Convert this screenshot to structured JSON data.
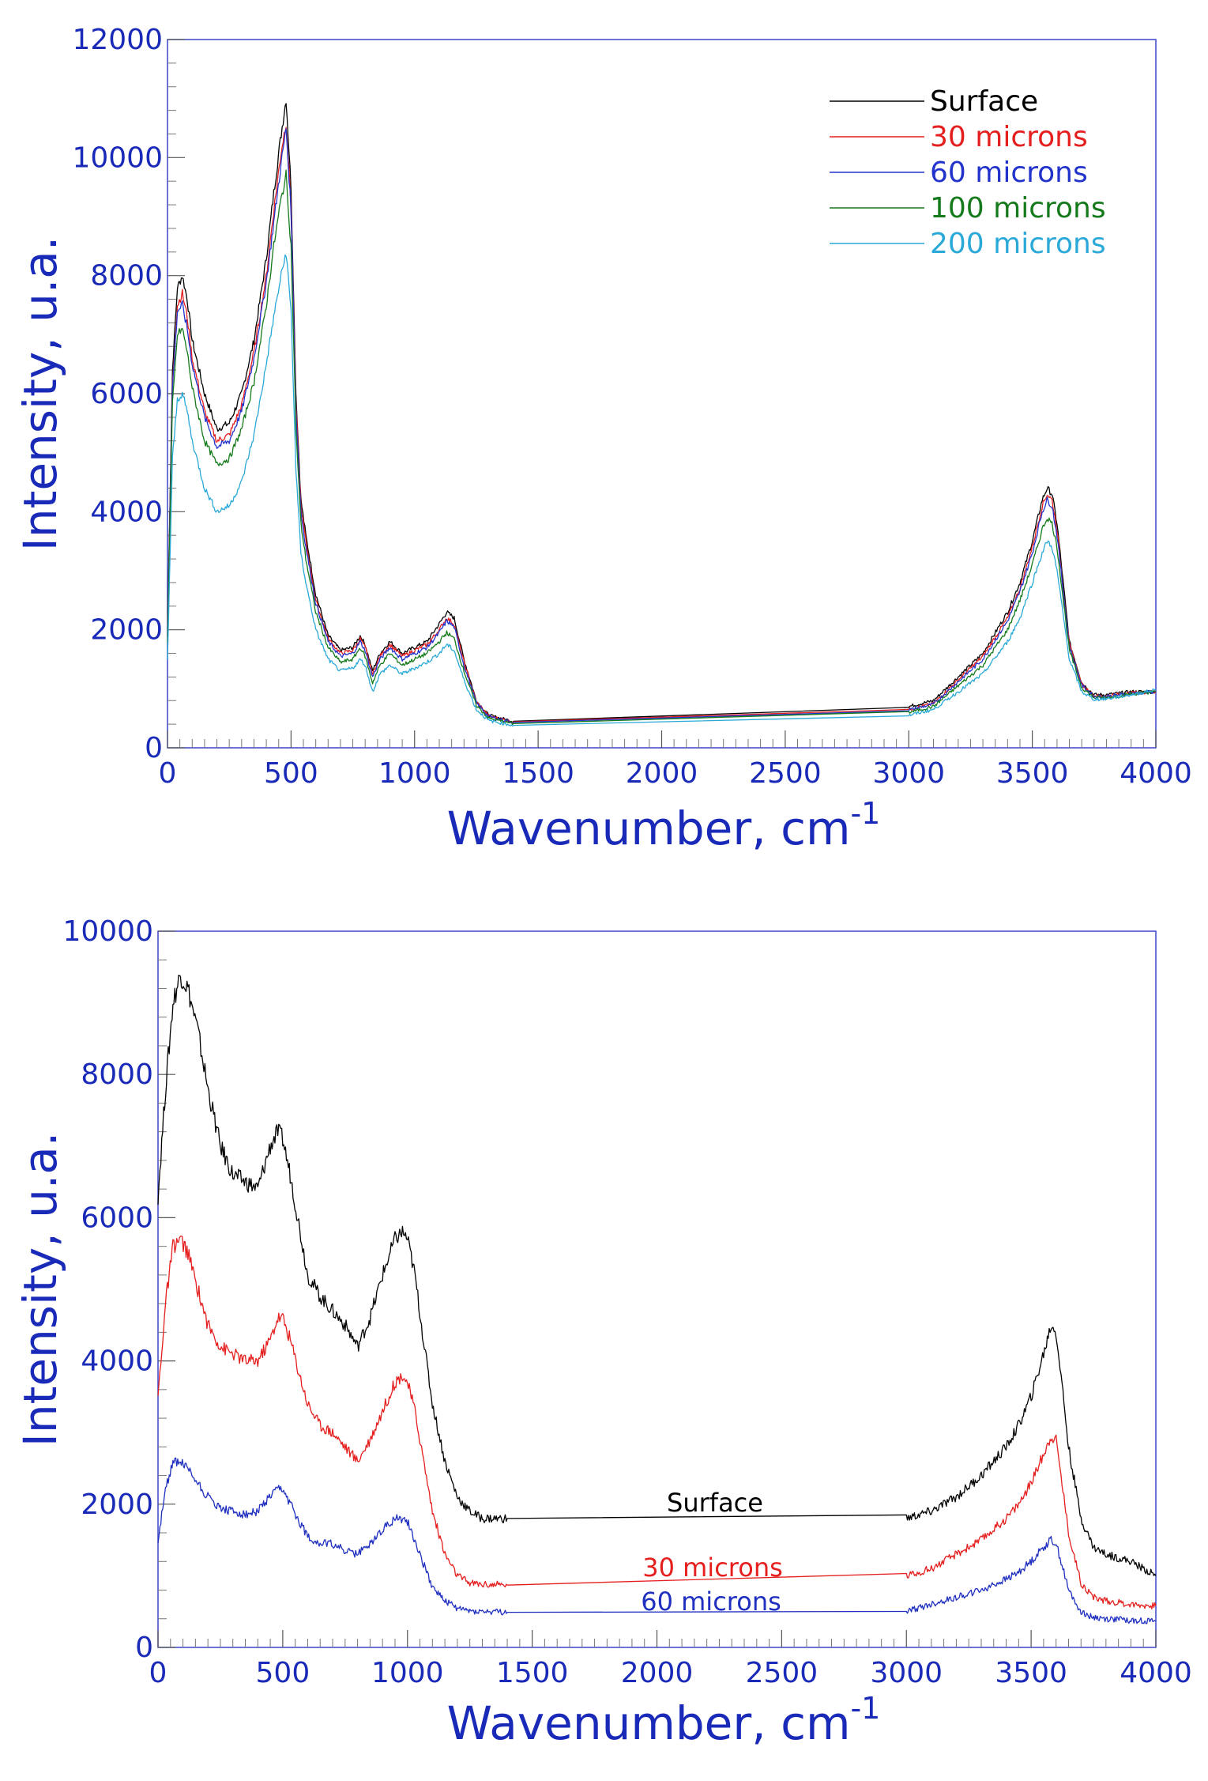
{
  "chart_data": [
    {
      "type": "line",
      "xlabel": "Wavenumber, cm",
      "xlabel_superscript": "-1",
      "ylabel": "Intensity, u.a.",
      "xlim": [
        0,
        4000
      ],
      "ylim": [
        0,
        12000
      ],
      "x_ticks": [
        0,
        500,
        1000,
        1500,
        2000,
        2500,
        3000,
        3500,
        4000
      ],
      "y_ticks": [
        0,
        2000,
        4000,
        6000,
        8000,
        10000,
        12000
      ],
      "tick_labels_x": [
        "0",
        "500",
        "1000",
        "1500",
        "2000",
        "2500",
        "3000",
        "3500",
        "4000"
      ],
      "tick_labels_y": [
        "0",
        "2000",
        "4000",
        "6000",
        "8000",
        "10000",
        "12000"
      ],
      "grid": false,
      "legend": "top-right",
      "series": [
        {
          "name": "Surface",
          "color": "#000000",
          "x": [
            0,
            20,
            40,
            60,
            80,
            100,
            150,
            200,
            250,
            300,
            350,
            400,
            430,
            460,
            480,
            500,
            520,
            540,
            560,
            600,
            650,
            700,
            750,
            780,
            800,
            830,
            860,
            900,
            950,
            1000,
            1050,
            1100,
            1130,
            1160,
            1200,
            1250,
            1300,
            1400,
            3000,
            3100,
            3200,
            3300,
            3400,
            3450,
            3500,
            3540,
            3560,
            3580,
            3600,
            3620,
            3650,
            3700,
            3750,
            3800,
            3900,
            4000
          ],
          "y": [
            2000,
            6400,
            7800,
            8000,
            7600,
            6900,
            6000,
            5400,
            5500,
            6000,
            6900,
            8300,
            9400,
            10400,
            11000,
            9500,
            6000,
            4200,
            3600,
            2600,
            1900,
            1650,
            1700,
            1900,
            1750,
            1300,
            1600,
            1800,
            1600,
            1700,
            1800,
            2100,
            2300,
            2200,
            1500,
            800,
            550,
            450,
            700,
            800,
            1200,
            1600,
            2300,
            2800,
            3500,
            4200,
            4400,
            4300,
            3800,
            3000,
            1800,
            1100,
            900,
            900,
            950,
            950
          ]
        },
        {
          "name": "30 microns",
          "color": "#e51e1e",
          "x": [
            0,
            20,
            40,
            60,
            80,
            100,
            150,
            200,
            250,
            300,
            350,
            400,
            430,
            460,
            480,
            500,
            520,
            540,
            560,
            600,
            650,
            700,
            750,
            780,
            800,
            830,
            860,
            900,
            950,
            1000,
            1050,
            1100,
            1130,
            1160,
            1200,
            1250,
            1300,
            1400,
            3000,
            3100,
            3200,
            3300,
            3400,
            3450,
            3500,
            3540,
            3560,
            3580,
            3600,
            3620,
            3650,
            3700,
            3750,
            3800,
            3900,
            4000
          ],
          "y": [
            1900,
            6200,
            7500,
            7700,
            7300,
            6600,
            5700,
            5200,
            5300,
            5800,
            6700,
            8000,
            9100,
            10100,
            10600,
            9200,
            5800,
            4100,
            3500,
            2500,
            1850,
            1600,
            1650,
            1850,
            1700,
            1250,
            1550,
            1750,
            1550,
            1650,
            1750,
            2000,
            2200,
            2100,
            1450,
            780,
            540,
            440,
            650,
            750,
            1150,
            1550,
            2200,
            2700,
            3400,
            4100,
            4300,
            4200,
            3700,
            2900,
            1750,
            1080,
            880,
            880,
            930,
            950
          ]
        },
        {
          "name": "60 microns",
          "color": "#2233cc",
          "x": [
            0,
            20,
            40,
            60,
            80,
            100,
            150,
            200,
            250,
            300,
            350,
            400,
            430,
            460,
            480,
            500,
            520,
            540,
            560,
            600,
            650,
            700,
            750,
            780,
            800,
            830,
            860,
            900,
            950,
            1000,
            1050,
            1100,
            1130,
            1160,
            1200,
            1250,
            1300,
            1400,
            3000,
            3100,
            3200,
            3300,
            3400,
            3450,
            3500,
            3540,
            3560,
            3580,
            3600,
            3620,
            3650,
            3700,
            3750,
            3800,
            3900,
            4000
          ],
          "y": [
            1900,
            6100,
            7400,
            7500,
            7100,
            6500,
            5600,
            5100,
            5200,
            5700,
            6600,
            7900,
            8900,
            9900,
            10500,
            9100,
            5700,
            4000,
            3400,
            2450,
            1800,
            1550,
            1600,
            1800,
            1650,
            1200,
            1500,
            1700,
            1500,
            1600,
            1700,
            1950,
            2150,
            2050,
            1400,
            760,
            530,
            430,
            640,
            740,
            1120,
            1500,
            2150,
            2650,
            3300,
            4000,
            4200,
            4100,
            3600,
            2850,
            1720,
            1060,
            870,
            870,
            920,
            950
          ]
        },
        {
          "name": "100 microns",
          "color": "#157a1b",
          "x": [
            0,
            20,
            40,
            60,
            80,
            100,
            150,
            200,
            250,
            300,
            350,
            400,
            430,
            460,
            480,
            500,
            520,
            540,
            560,
            600,
            650,
            700,
            750,
            780,
            800,
            830,
            860,
            900,
            950,
            1000,
            1050,
            1100,
            1130,
            1160,
            1200,
            1250,
            1300,
            1400,
            3000,
            3100,
            3200,
            3300,
            3400,
            3450,
            3500,
            3540,
            3560,
            3580,
            3600,
            3620,
            3650,
            3700,
            3750,
            3800,
            3900,
            4000
          ],
          "y": [
            1800,
            5800,
            7000,
            7100,
            6700,
            6100,
            5200,
            4800,
            4900,
            5400,
            6200,
            7500,
            8500,
            9300,
            9700,
            8500,
            5400,
            3800,
            3200,
            2300,
            1700,
            1450,
            1500,
            1700,
            1550,
            1100,
            1400,
            1600,
            1400,
            1500,
            1600,
            1800,
            1950,
            1850,
            1300,
            720,
            500,
            410,
            600,
            700,
            1050,
            1400,
            2000,
            2500,
            3100,
            3700,
            3900,
            3800,
            3400,
            2700,
            1650,
            1020,
            850,
            850,
            910,
            950
          ]
        },
        {
          "name": "200 microns",
          "color": "#2aa9d8",
          "x": [
            0,
            20,
            40,
            60,
            80,
            100,
            150,
            200,
            250,
            300,
            350,
            400,
            430,
            460,
            480,
            500,
            520,
            540,
            560,
            600,
            650,
            700,
            750,
            780,
            800,
            830,
            860,
            900,
            950,
            1000,
            1050,
            1100,
            1130,
            1160,
            1200,
            1250,
            1300,
            1400,
            3000,
            3100,
            3200,
            3300,
            3400,
            3450,
            3500,
            3540,
            3560,
            3580,
            3600,
            3620,
            3650,
            3700,
            3750,
            3800,
            3900,
            4000
          ],
          "y": [
            1500,
            4900,
            5900,
            6000,
            5700,
            5200,
            4400,
            4000,
            4100,
            4500,
            5300,
            6500,
            7300,
            8000,
            8400,
            7400,
            4700,
            3300,
            2800,
            2000,
            1500,
            1300,
            1350,
            1500,
            1400,
            950,
            1250,
            1400,
            1250,
            1350,
            1450,
            1600,
            1750,
            1650,
            1150,
            650,
            460,
            380,
            550,
            650,
            950,
            1250,
            1800,
            2200,
            2800,
            3300,
            3500,
            3400,
            3000,
            2400,
            1500,
            950,
            820,
            830,
            900,
            980
          ]
        }
      ]
    },
    {
      "type": "line",
      "xlabel": "Wavenumber, cm",
      "xlabel_superscript": "-1",
      "ylabel": "Intensity, u.a.",
      "xlim": [
        0,
        4000
      ],
      "ylim": [
        0,
        10000
      ],
      "x_ticks": [
        0,
        500,
        1000,
        1500,
        2000,
        2500,
        3000,
        3500,
        4000
      ],
      "y_ticks": [
        0,
        2000,
        4000,
        6000,
        8000,
        10000
      ],
      "tick_labels_x": [
        "0",
        "500",
        "1000",
        "1500",
        "2000",
        "2500",
        "3000",
        "3500",
        "4000"
      ],
      "tick_labels_y": [
        "0",
        "2000",
        "4000",
        "6000",
        "8000",
        "10000"
      ],
      "grid": false,
      "series": [
        {
          "name": "Surface",
          "color": "#000000",
          "x": [
            0,
            30,
            60,
            90,
            120,
            160,
            200,
            250,
            300,
            350,
            400,
            450,
            480,
            500,
            530,
            560,
            600,
            650,
            700,
            750,
            800,
            850,
            900,
            950,
            980,
            1000,
            1030,
            1060,
            1100,
            1150,
            1200,
            1250,
            1300,
            1400,
            3000,
            3100,
            3200,
            3300,
            3400,
            3450,
            3500,
            3550,
            3580,
            3600,
            3620,
            3650,
            3700,
            3750,
            3800,
            3900,
            4000
          ],
          "y": [
            6300,
            7800,
            9000,
            9400,
            9200,
            8600,
            7800,
            7000,
            6600,
            6500,
            6400,
            7000,
            7200,
            7100,
            6600,
            6000,
            5200,
            4900,
            4700,
            4500,
            4200,
            4600,
            5200,
            5700,
            5800,
            5700,
            5200,
            4400,
            3400,
            2600,
            2100,
            1900,
            1800,
            1800,
            1800,
            1900,
            2100,
            2400,
            2800,
            3100,
            3500,
            4100,
            4500,
            4400,
            3800,
            2800,
            1800,
            1400,
            1300,
            1200,
            1000
          ]
        },
        {
          "name": "30 microns",
          "color": "#e51e1e",
          "x": [
            0,
            30,
            60,
            90,
            120,
            160,
            200,
            250,
            300,
            350,
            400,
            450,
            480,
            500,
            530,
            560,
            600,
            650,
            700,
            750,
            800,
            850,
            900,
            950,
            980,
            1000,
            1030,
            1060,
            1100,
            1150,
            1200,
            1250,
            1300,
            1400,
            3000,
            3100,
            3200,
            3300,
            3400,
            3450,
            3500,
            3550,
            3580,
            3600,
            3620,
            3650,
            3700,
            3750,
            3800,
            3900,
            4000
          ],
          "y": [
            3500,
            4800,
            5600,
            5700,
            5500,
            5000,
            4500,
            4200,
            4100,
            4000,
            4000,
            4300,
            4600,
            4600,
            4300,
            3900,
            3400,
            3100,
            3000,
            2800,
            2600,
            2900,
            3300,
            3700,
            3800,
            3700,
            3300,
            2700,
            1900,
            1300,
            1000,
            900,
            880,
            870,
            1000,
            1100,
            1300,
            1500,
            1800,
            2000,
            2300,
            2700,
            2950,
            2900,
            2400,
            1600,
            900,
            700,
            650,
            600,
            580
          ]
        },
        {
          "name": "60 microns",
          "color": "#1f2fbf",
          "x": [
            0,
            30,
            60,
            90,
            120,
            160,
            200,
            250,
            300,
            350,
            400,
            450,
            480,
            500,
            530,
            560,
            600,
            650,
            700,
            750,
            800,
            850,
            900,
            950,
            980,
            1000,
            1030,
            1060,
            1100,
            1150,
            1200,
            1250,
            1300,
            1400,
            3000,
            3100,
            3200,
            3300,
            3400,
            3450,
            3500,
            3550,
            3580,
            3600,
            3620,
            3650,
            3700,
            3750,
            3800,
            3900,
            4000
          ],
          "y": [
            1500,
            2200,
            2600,
            2600,
            2500,
            2300,
            2100,
            1950,
            1900,
            1850,
            1900,
            2100,
            2200,
            2200,
            2000,
            1800,
            1550,
            1450,
            1450,
            1350,
            1300,
            1450,
            1650,
            1800,
            1800,
            1750,
            1500,
            1200,
            850,
            650,
            550,
            510,
            500,
            490,
            500,
            600,
            700,
            800,
            950,
            1050,
            1200,
            1400,
            1500,
            1450,
            1200,
            800,
            500,
            420,
            400,
            380,
            370
          ]
        }
      ],
      "annotations": [
        "Surface",
        "30 microns",
        "60 microns"
      ]
    }
  ]
}
